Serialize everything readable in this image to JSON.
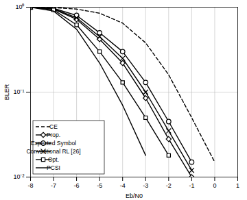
{
  "chart_data": {
    "type": "line",
    "x_label": "Eb/N0",
    "y_label": "BLER",
    "x": [
      -8,
      -7,
      -6,
      -5,
      -4,
      -3,
      -2,
      -1,
      0,
      1
    ],
    "xlim": [
      -8,
      1
    ],
    "xticks": [
      -8,
      -7,
      -6,
      -5,
      -4,
      -3,
      -2,
      -1,
      0,
      1
    ],
    "ylim": [
      0.01,
      1
    ],
    "yticks": [
      {
        "value": 0.01,
        "label": "10⁻²"
      },
      {
        "value": 0.1,
        "label": "10⁻¹"
      },
      {
        "value": 1,
        "label": "10⁰"
      }
    ],
    "log": "y",
    "grid": true,
    "legend": "bottom-left",
    "series": [
      {
        "name": "CE",
        "color": "#000000",
        "marker": "none",
        "line_style": "dashed",
        "values": [
          1,
          0.99,
          0.95,
          0.85,
          0.65,
          0.38,
          0.16,
          0.05,
          0.015,
          null
        ]
      },
      {
        "name": "Prop.",
        "color": "#000000",
        "marker": "diamond",
        "line_style": "solid",
        "values": [
          1,
          0.95,
          0.72,
          0.42,
          0.22,
          0.085,
          0.028,
          0.01,
          null,
          null
        ]
      },
      {
        "name": "Expected Symbol",
        "color": "#000000",
        "marker": "circle",
        "line_style": "solid",
        "values": [
          1,
          0.97,
          0.8,
          0.5,
          0.3,
          0.13,
          0.045,
          0.015,
          null,
          null
        ]
      },
      {
        "name": "Conventional RL [26]",
        "color": "#000000",
        "marker": "x",
        "line_style": "solid",
        "values": [
          1,
          0.96,
          0.75,
          0.45,
          0.25,
          0.1,
          0.035,
          0.012,
          null,
          null
        ]
      },
      {
        "name": "Opt.",
        "color": "#000000",
        "marker": "square",
        "line_style": "solid",
        "values": [
          1,
          0.93,
          0.62,
          0.3,
          0.13,
          0.05,
          0.018,
          null,
          null,
          null
        ]
      },
      {
        "name": "PCSI",
        "color": "#000000",
        "marker": "none",
        "line_style": "solid",
        "values": [
          1,
          0.9,
          0.55,
          0.22,
          0.07,
          0.018,
          null,
          null,
          null,
          null
        ]
      }
    ]
  }
}
